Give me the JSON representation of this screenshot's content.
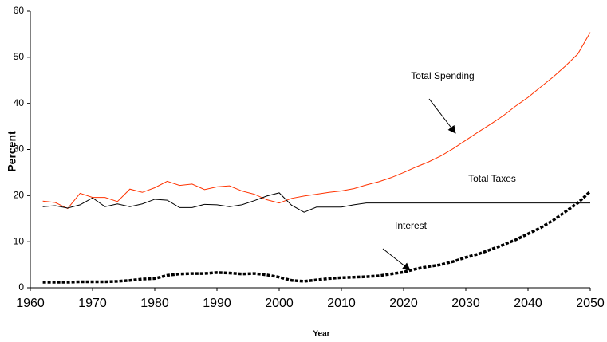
{
  "chart_data": {
    "type": "line",
    "x_label": "Year",
    "y_label": "Percent",
    "x": [
      1962,
      1964,
      1966,
      1968,
      1970,
      1972,
      1974,
      1976,
      1978,
      1980,
      1982,
      1984,
      1986,
      1988,
      1990,
      1992,
      1994,
      1996,
      1998,
      2000,
      2002,
      2004,
      2006,
      2008,
      2010,
      2012,
      2014,
      2016,
      2018,
      2020,
      2022,
      2024,
      2026,
      2028,
      2030,
      2032,
      2034,
      2036,
      2038,
      2040,
      2042,
      2044,
      2046,
      2048,
      2050
    ],
    "series": [
      {
        "name": "Total Spending",
        "color": "#ff3300",
        "line_style": "solid",
        "values": [
          18.8,
          18.5,
          17.2,
          20.5,
          19.6,
          19.6,
          18.7,
          21.4,
          20.7,
          21.7,
          23.1,
          22.2,
          22.5,
          21.3,
          21.9,
          22.1,
          21.0,
          20.3,
          19.1,
          18.4,
          19.4,
          19.9,
          20.3,
          20.7,
          21.0,
          21.5,
          22.3,
          23.0,
          23.9,
          25.0,
          26.2,
          27.3,
          28.6,
          30.2,
          32.0,
          33.8,
          35.5,
          37.3,
          39.4,
          41.3,
          43.5,
          45.7,
          48.1,
          50.7,
          55.4
        ]
      },
      {
        "name": "Total Taxes",
        "color": "#000000",
        "line_style": "solid",
        "values": [
          17.6,
          17.8,
          17.3,
          18.0,
          19.5,
          17.6,
          18.2,
          17.6,
          18.2,
          19.2,
          19.0,
          17.4,
          17.4,
          18.1,
          18.0,
          17.6,
          18.0,
          18.9,
          19.9,
          20.6,
          17.9,
          16.4,
          17.5,
          17.5,
          17.5,
          18.0,
          18.4,
          18.4,
          18.4,
          18.4,
          18.4,
          18.4,
          18.4,
          18.4,
          18.4,
          18.4,
          18.4,
          18.4,
          18.4,
          18.4,
          18.4,
          18.4,
          18.4,
          18.4,
          18.4
        ]
      },
      {
        "name": "Interest",
        "color": "#000000",
        "line_style": "dashed",
        "values": [
          1.2,
          1.2,
          1.2,
          1.3,
          1.3,
          1.3,
          1.4,
          1.6,
          1.9,
          2.0,
          2.7,
          3.0,
          3.1,
          3.1,
          3.3,
          3.2,
          3.0,
          3.1,
          2.8,
          2.3,
          1.6,
          1.4,
          1.7,
          2.0,
          2.2,
          2.3,
          2.4,
          2.6,
          3.0,
          3.4,
          4.1,
          4.6,
          5.0,
          5.7,
          6.6,
          7.3,
          8.3,
          9.3,
          10.4,
          11.7,
          13.0,
          14.6,
          16.5,
          18.4,
          20.9
        ]
      }
    ],
    "xlim": [
      1960,
      2050
    ],
    "xticks": [
      1960,
      1970,
      1980,
      1990,
      2000,
      2010,
      2020,
      2030,
      2040,
      2050
    ],
    "ylim": [
      0,
      60
    ],
    "yticks": [
      0,
      10,
      20,
      30,
      40,
      50,
      60
    ],
    "grid": false
  }
}
